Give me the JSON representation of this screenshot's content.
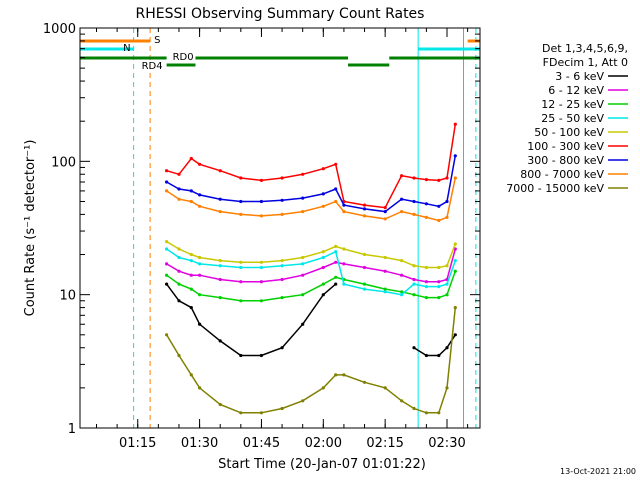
{
  "chart_data": {
    "type": "line",
    "title": "RHESSI Observing Summary Count Rates",
    "xlabel": "Start Time (20-Jan-07 01:01:22)",
    "ylabel": "Count Rate (s⁻¹ detector⁻¹)",
    "yscale": "log",
    "ylim": [
      1,
      1000
    ],
    "xlim": [
      "01:01",
      "02:38"
    ],
    "x_ticks": [
      "01:15",
      "01:30",
      "01:45",
      "02:00",
      "02:15",
      "02:30"
    ],
    "y_ticks": [
      "1",
      "10",
      "100",
      "1000"
    ],
    "legend_title": [
      "Det 1,3,4,5,6,9,",
      "FDecim 1, Att 0"
    ],
    "legend_position": "right",
    "footer": "13-Oct-2021 21:00",
    "x": [
      "01:22",
      "01:25",
      "01:28",
      "01:30",
      "01:35",
      "01:40",
      "01:45",
      "01:50",
      "01:55",
      "02:00",
      "02:03",
      "02:05",
      "02:10",
      "02:15",
      "02:19",
      "02:22",
      "02:25",
      "02:28",
      "02:30",
      "02:32"
    ],
    "series": [
      {
        "name": "3 - 6 keV",
        "color": "#000000",
        "values": [
          12,
          9,
          8,
          6,
          4.5,
          3.5,
          3.5,
          4,
          6,
          10,
          12,
          null,
          null,
          null,
          null,
          4,
          3.5,
          3.5,
          4,
          5
        ]
      },
      {
        "name": "6 - 12 keV",
        "color": "#e000e0",
        "values": [
          17,
          15,
          14,
          14,
          13,
          12.5,
          12.5,
          13,
          14,
          16,
          17.5,
          17,
          16,
          15,
          14,
          13,
          12.5,
          12.5,
          13,
          22
        ]
      },
      {
        "name": "12 - 25 keV",
        "color": "#00d000",
        "values": [
          14,
          12,
          11,
          10,
          9.5,
          9,
          9,
          9.5,
          10,
          12,
          13.5,
          13,
          12,
          11,
          10.5,
          10,
          9.5,
          9.5,
          10,
          15
        ]
      },
      {
        "name": "25 - 50 keV",
        "color": "#00e8e8",
        "values": [
          22,
          19,
          18,
          17,
          16.5,
          16,
          16,
          16.5,
          17,
          19,
          21,
          12,
          11,
          10.5,
          10,
          12,
          11.5,
          11.5,
          12,
          18
        ]
      },
      {
        "name": "50 - 100 keV",
        "color": "#c8c800",
        "values": [
          25,
          22,
          20,
          19,
          18,
          17.5,
          17.5,
          18,
          19,
          21,
          23,
          22,
          20,
          19,
          18,
          16.5,
          16,
          16,
          16.5,
          24
        ]
      },
      {
        "name": "100 - 300 keV",
        "color": "#ff0000",
        "values": [
          85,
          80,
          105,
          95,
          85,
          75,
          72,
          75,
          80,
          88,
          95,
          50,
          47,
          45,
          78,
          75,
          73,
          72,
          75,
          190
        ]
      },
      {
        "name": "300 - 800 keV",
        "color": "#0000e0",
        "values": [
          70,
          62,
          60,
          56,
          52,
          50,
          50,
          51,
          53,
          57,
          62,
          47,
          44,
          42,
          52,
          50,
          48,
          46,
          50,
          110
        ]
      },
      {
        "name": "800 - 7000 keV",
        "color": "#ff8000",
        "values": [
          60,
          52,
          50,
          46,
          42,
          40,
          39,
          40,
          42,
          46,
          50,
          42,
          39,
          37,
          42,
          40,
          38,
          36,
          38,
          75
        ]
      },
      {
        "name": "7000 - 15000 keV",
        "color": "#808000",
        "values": [
          5,
          3.5,
          2.5,
          2,
          1.5,
          1.3,
          1.3,
          1.4,
          1.6,
          2,
          2.5,
          2.5,
          2.2,
          2,
          1.6,
          1.4,
          1.3,
          1.3,
          2,
          8
        ]
      }
    ],
    "status_bars": [
      {
        "label": "S",
        "color": "#ff8000",
        "segments": [
          [
            "01:01",
            "01:18"
          ],
          [
            "02:35",
            "02:38"
          ]
        ]
      },
      {
        "label": "N",
        "color": "#00e8e8",
        "segments": [
          [
            "01:01",
            "01:14"
          ],
          [
            "02:23",
            "02:38"
          ]
        ]
      },
      {
        "label": "RD0",
        "color": "#008000",
        "segments": [
          [
            "01:22",
            "01:29"
          ]
        ]
      },
      {
        "label": "RD4",
        "color": "#008000",
        "segments": [
          [
            "01:01",
            "01:22"
          ],
          [
            "01:29",
            "02:06"
          ],
          [
            "02:06",
            "02:16"
          ],
          [
            "02:16",
            "02:38"
          ]
        ]
      }
    ],
    "vertical_markers": [
      {
        "x": "01:14",
        "color": "#00e8e8",
        "style": "dashed"
      },
      {
        "x": "01:18",
        "color": "#ff8000",
        "style": "dashed"
      },
      {
        "x": "02:23",
        "color": "#00e8e8",
        "style": "solid"
      },
      {
        "x": "02:34",
        "color": "#ff8000",
        "style": "solid"
      },
      {
        "x": "02:37",
        "color": "#00e8e8",
        "style": "dashed"
      }
    ]
  }
}
